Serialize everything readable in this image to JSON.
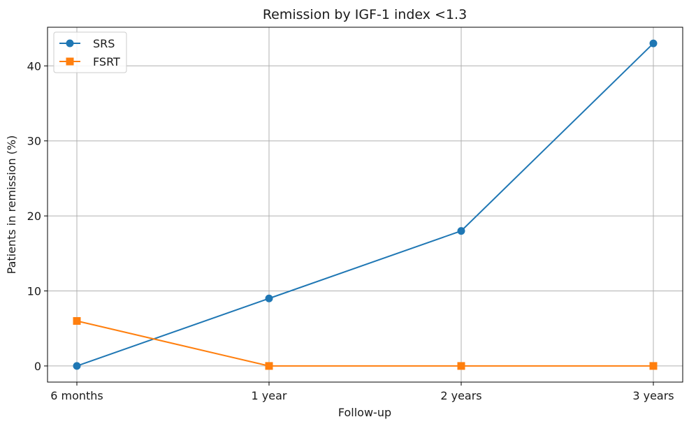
{
  "chart_data": {
    "type": "line",
    "title": "Remission by IGF-1 index <1.3",
    "xlabel": "Follow-up",
    "ylabel": "Patients in remission (%)",
    "categories": [
      "6 months",
      "1 year",
      "2 years",
      "3 years"
    ],
    "ylim": [
      -2.15,
      45.15
    ],
    "yticks": [
      0,
      10,
      20,
      30,
      40
    ],
    "grid": true,
    "legend_position": "top-left",
    "series": [
      {
        "name": "SRS",
        "values": [
          0,
          9,
          18,
          43
        ],
        "color": "#1f77b4",
        "marker": "circle"
      },
      {
        "name": "FSRT",
        "values": [
          6,
          0,
          0,
          0
        ],
        "color": "#ff7f0e",
        "marker": "square"
      }
    ]
  }
}
